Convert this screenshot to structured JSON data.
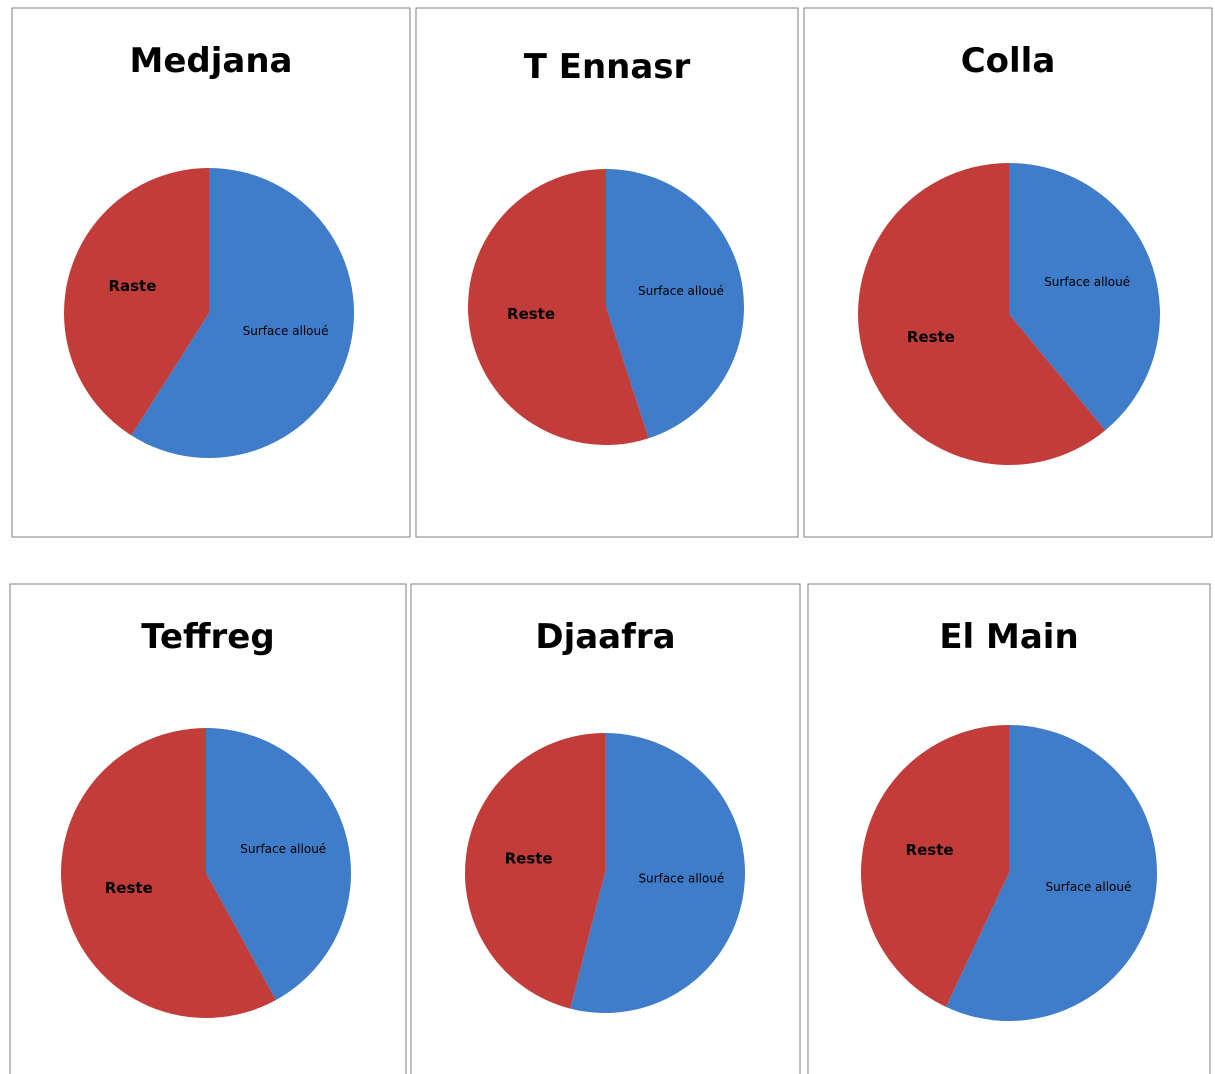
{
  "chart_data": [
    {
      "type": "pie",
      "title": "Medjana",
      "categories": [
        "Surface alloué",
        "Raste"
      ],
      "values": [
        59,
        41
      ],
      "colors": [
        "#3f7cc9",
        "#c23d3a"
      ]
    },
    {
      "type": "pie",
      "title": "T Ennasr",
      "categories": [
        "Surface alloué",
        "Reste"
      ],
      "values": [
        45,
        55
      ],
      "colors": [
        "#3f7cc9",
        "#c23d3a"
      ]
    },
    {
      "type": "pie",
      "title": "Colla",
      "categories": [
        "Surface alloué",
        "Reste"
      ],
      "values": [
        39,
        61
      ],
      "colors": [
        "#3f7cc9",
        "#c23d3a"
      ]
    },
    {
      "type": "pie",
      "title": "Teffreg",
      "categories": [
        "Surface alloué",
        "Reste"
      ],
      "values": [
        42,
        58
      ],
      "colors": [
        "#3f7cc9",
        "#c23d3a"
      ]
    },
    {
      "type": "pie",
      "title": "Djaafra",
      "categories": [
        "Surface alloué",
        "Reste"
      ],
      "values": [
        54,
        46
      ],
      "colors": [
        "#3f7cc9",
        "#c23d3a"
      ]
    },
    {
      "type": "pie",
      "title": "El Main",
      "categories": [
        "Surface alloué",
        "Reste"
      ],
      "values": [
        57,
        43
      ],
      "colors": [
        "#3f7cc9",
        "#c23d3a"
      ]
    }
  ]
}
